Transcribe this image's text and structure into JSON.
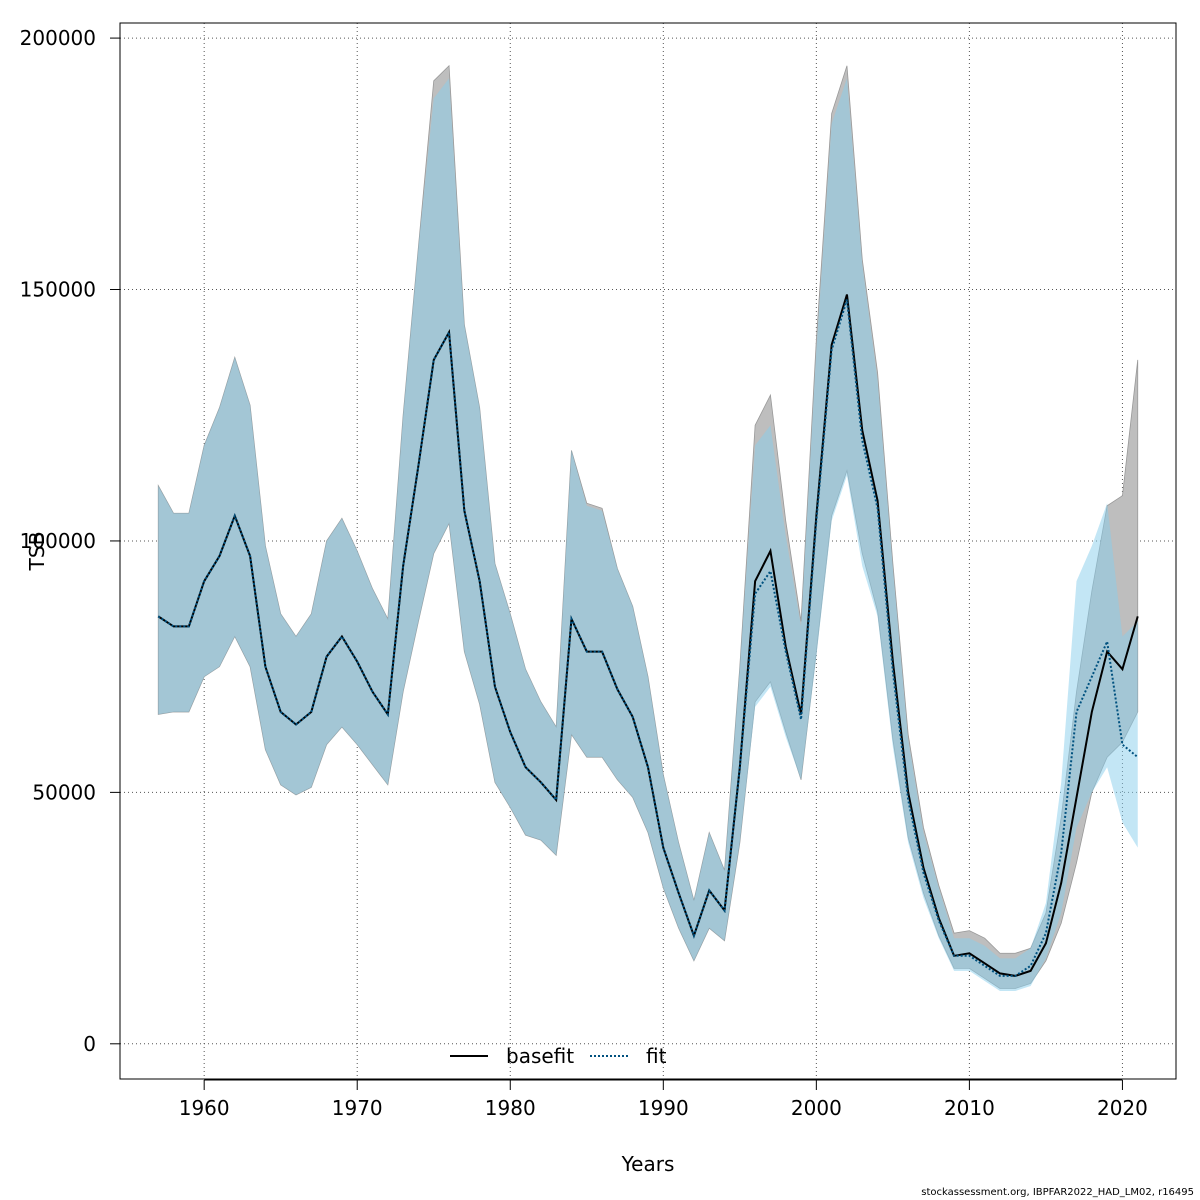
{
  "chart_data": {
    "type": "area",
    "xlabel": "Years",
    "ylabel": "TSB",
    "xlim": [
      1954.5,
      2023.5
    ],
    "ylim": [
      -7000,
      203000
    ],
    "x_ticks": [
      1960,
      1970,
      1980,
      1990,
      2000,
      2010,
      2020
    ],
    "y_ticks": [
      0,
      50000,
      100000,
      150000,
      200000
    ],
    "grid": true,
    "legend": {
      "placement": "bottom-center",
      "entries": [
        "basefit",
        "fit"
      ]
    },
    "x": [
      1957,
      1958,
      1959,
      1960,
      1961,
      1962,
      1963,
      1964,
      1965,
      1966,
      1967,
      1968,
      1969,
      1970,
      1971,
      1972,
      1973,
      1974,
      1975,
      1976,
      1977,
      1978,
      1979,
      1980,
      1981,
      1982,
      1983,
      1984,
      1985,
      1986,
      1987,
      1988,
      1989,
      1990,
      1991,
      1992,
      1993,
      1994,
      1995,
      1996,
      1997,
      1998,
      1999,
      2000,
      2001,
      2002,
      2003,
      2004,
      2005,
      2006,
      2007,
      2008,
      2009,
      2010,
      2011,
      2012,
      2013,
      2014,
      2015,
      2016,
      2017,
      2018,
      2019,
      2020,
      2021
    ],
    "series": [
      {
        "name": "basefit",
        "color": "#000000",
        "band_color": "#bebebe",
        "values": [
          85000,
          83000,
          83000,
          92000,
          97000,
          105000,
          97000,
          75000,
          66000,
          63500,
          66000,
          77000,
          81000,
          76000,
          70000,
          65500,
          95000,
          115000,
          136000,
          141500,
          106000,
          92000,
          71000,
          62000,
          55000,
          52000,
          48500,
          84500,
          78000,
          78000,
          70500,
          65000,
          55000,
          39000,
          30000,
          21500,
          30500,
          26500,
          55000,
          92000,
          98000,
          79000,
          65500,
          105000,
          139000,
          149000,
          122000,
          108000,
          76000,
          50000,
          35000,
          25000,
          17500,
          18000,
          16000,
          14000,
          13500,
          14500,
          20000,
          32000,
          49000,
          66000,
          78000,
          74500,
          85000
        ],
        "lower": [
          65500,
          66000,
          66000,
          73000,
          75000,
          81000,
          75000,
          58500,
          51500,
          49500,
          51000,
          59500,
          63000,
          59500,
          55500,
          51500,
          70000,
          84000,
          97500,
          103500,
          78000,
          67500,
          52000,
          47000,
          41500,
          40500,
          37500,
          61500,
          57000,
          57000,
          52500,
          49000,
          42000,
          31000,
          23000,
          16500,
          23000,
          20500,
          40000,
          68000,
          72000,
          62000,
          52500,
          78000,
          105000,
          114000,
          97500,
          86000,
          60500,
          41000,
          30000,
          21500,
          15000,
          15000,
          13000,
          11000,
          11000,
          12000,
          16500,
          24000,
          36000,
          50000,
          57000,
          60000,
          66000
        ],
        "upper": [
          111000,
          105500,
          105500,
          119000,
          126500,
          136500,
          127000,
          99000,
          85500,
          81000,
          85500,
          100000,
          104500,
          98000,
          90500,
          84500,
          125000,
          158500,
          191500,
          194500,
          143000,
          126500,
          95500,
          85500,
          74500,
          68000,
          63000,
          118000,
          107500,
          106500,
          94500,
          87000,
          73000,
          53500,
          40000,
          28500,
          42000,
          34500,
          75000,
          123000,
          129000,
          104000,
          84000,
          140000,
          185000,
          194500,
          156000,
          133500,
          95500,
          61500,
          43000,
          31500,
          22000,
          22500,
          21000,
          18000,
          18000,
          19000,
          26000,
          45000,
          70000,
          90000,
          107000,
          109000,
          136000
        ]
      },
      {
        "name": "fit",
        "color": "#00517f",
        "band_color": "#87ceeb",
        "values": [
          85000,
          83000,
          83000,
          92000,
          97000,
          105000,
          97000,
          75000,
          66000,
          63500,
          66000,
          77000,
          81000,
          76000,
          70000,
          65500,
          95000,
          115000,
          136000,
          141500,
          106000,
          92000,
          71000,
          62000,
          55000,
          52000,
          48500,
          84500,
          78000,
          78000,
          70500,
          65000,
          55000,
          39000,
          30000,
          21500,
          30500,
          26500,
          55000,
          89500,
          94000,
          78000,
          64500,
          104000,
          138000,
          148000,
          120000,
          106500,
          74000,
          48500,
          34000,
          24500,
          17500,
          17500,
          15500,
          13500,
          13500,
          15500,
          22000,
          38000,
          66000,
          73000,
          80000,
          59500,
          57000
        ],
        "lower": [
          65500,
          66000,
          66000,
          73000,
          75000,
          81000,
          75000,
          58500,
          51500,
          49500,
          51000,
          59500,
          63000,
          59500,
          55500,
          51500,
          70000,
          84000,
          97500,
          103500,
          78000,
          67500,
          52000,
          47000,
          41500,
          40500,
          37500,
          61500,
          57000,
          57000,
          52500,
          49000,
          42000,
          31000,
          23000,
          16500,
          23000,
          20500,
          40000,
          67000,
          71000,
          61000,
          52500,
          77000,
          104000,
          113000,
          95000,
          85000,
          59000,
          40000,
          29000,
          21000,
          14500,
          14500,
          12500,
          10500,
          10500,
          11500,
          17000,
          26000,
          43000,
          50000,
          55000,
          44000,
          39000
        ],
        "upper": [
          111000,
          105500,
          105500,
          119000,
          126500,
          136500,
          127000,
          99000,
          85500,
          81000,
          85500,
          100000,
          104500,
          98000,
          90500,
          84500,
          125000,
          158500,
          188000,
          192000,
          143000,
          126500,
          95500,
          85500,
          74500,
          68000,
          63000,
          118000,
          107000,
          106000,
          94500,
          87000,
          73000,
          53500,
          40000,
          28500,
          42000,
          34500,
          75000,
          119000,
          123000,
          101000,
          83000,
          138000,
          183000,
          192000,
          155000,
          132000,
          94500,
          60500,
          42000,
          31000,
          21000,
          21000,
          19500,
          17000,
          17000,
          19000,
          28000,
          52000,
          92000,
          99000,
          107500,
          81000,
          84000
        ]
      }
    ]
  },
  "credit": "stockassessment.org, IBPFAR2022_HAD_LM02, r16495"
}
